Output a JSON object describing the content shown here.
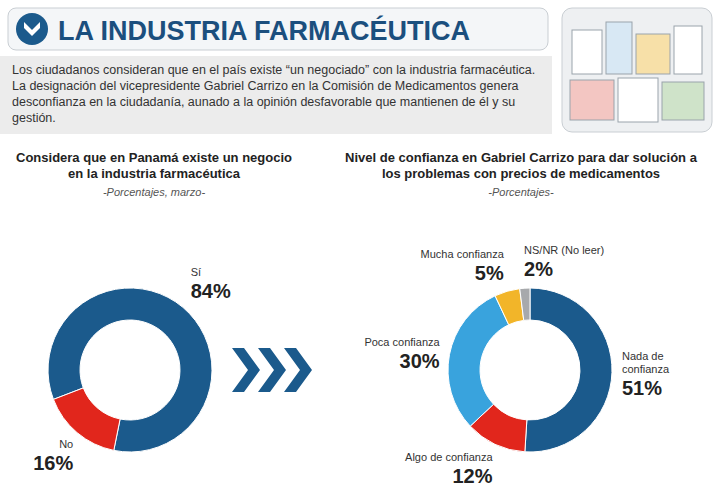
{
  "header": {
    "title": "LA INDUSTRIA FARMACÉUTICA",
    "intro": "Los ciudadanos consideran que en el país existe “un negociado” con la industria farmacéutica. La designación del vicepresidente Gabriel Carrizo en la Comisión de Medicamentos genera desconfianza en la ciudadanía, aunado a la opinión desfavorable que mantienen de él y su gestión."
  },
  "chart_data": [
    {
      "type": "donut",
      "title": "Considera que en Panamá existe un negocio en la industria farmacéutica",
      "subtitle": "-Porcentajes, marzo-",
      "categories": [
        "Sí",
        "No"
      ],
      "values": [
        84,
        16
      ],
      "value_labels": [
        "84%",
        "16%"
      ],
      "colors": [
        "#1b5a8c",
        "#e1261c"
      ],
      "data_labels": true
    },
    {
      "type": "donut",
      "title": "Nivel de confianza en Gabriel Carrizo para dar solución a los problemas con precios de medicamentos",
      "subtitle": "-Porcentajes-",
      "categories": [
        "Nada de confianza",
        "Algo de confianza",
        "Poca confianza",
        "Mucha confianza",
        "NS/NR (No leer)"
      ],
      "values": [
        51,
        12,
        30,
        5,
        2
      ],
      "value_labels": [
        "51%",
        "12%",
        "30%",
        "5%",
        "2%"
      ],
      "colors": [
        "#1b5a8c",
        "#e1261c",
        "#39a3dd",
        "#f2b529",
        "#a7a9ac"
      ],
      "data_labels": true
    }
  ]
}
